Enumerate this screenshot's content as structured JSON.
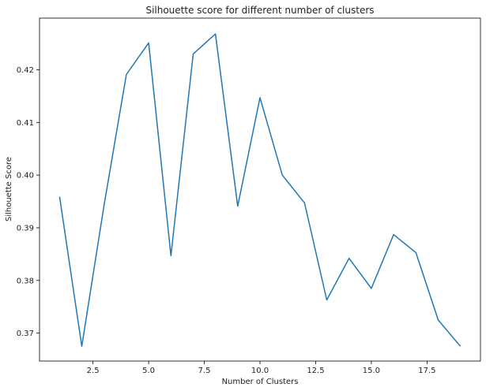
{
  "chart_data": {
    "type": "line",
    "title": "Silhouette score for different number of clusters",
    "xlabel": "Number of Clusters",
    "ylabel": "Silhouette Score",
    "xlim": [
      0.1,
      19.9
    ],
    "ylim": [
      0.3647,
      0.4298
    ],
    "x_ticks": [
      2.5,
      5.0,
      7.5,
      10.0,
      12.5,
      15.0,
      17.5
    ],
    "x_tick_labels": [
      "2.5",
      "5.0",
      "7.5",
      "10.0",
      "12.5",
      "15.0",
      "17.5"
    ],
    "y_ticks": [
      0.37,
      0.38,
      0.39,
      0.4,
      0.41,
      0.42
    ],
    "y_tick_labels": [
      "0.37",
      "0.38",
      "0.39",
      "0.40",
      "0.41",
      "0.42"
    ],
    "grid": false,
    "series": [
      {
        "color": "#1f77b4",
        "x": [
          1,
          2,
          3,
          4,
          5,
          6,
          7,
          8,
          9,
          10,
          11,
          12,
          13,
          14,
          15,
          16,
          17,
          18,
          19
        ],
        "y": [
          0.3959,
          0.3675,
          0.3943,
          0.4191,
          0.4251,
          0.3847,
          0.423,
          0.4268,
          0.3941,
          0.4147,
          0.4,
          0.3947,
          0.3763,
          0.3842,
          0.3785,
          0.3887,
          0.3853,
          0.3725,
          0.3675
        ]
      }
    ]
  }
}
